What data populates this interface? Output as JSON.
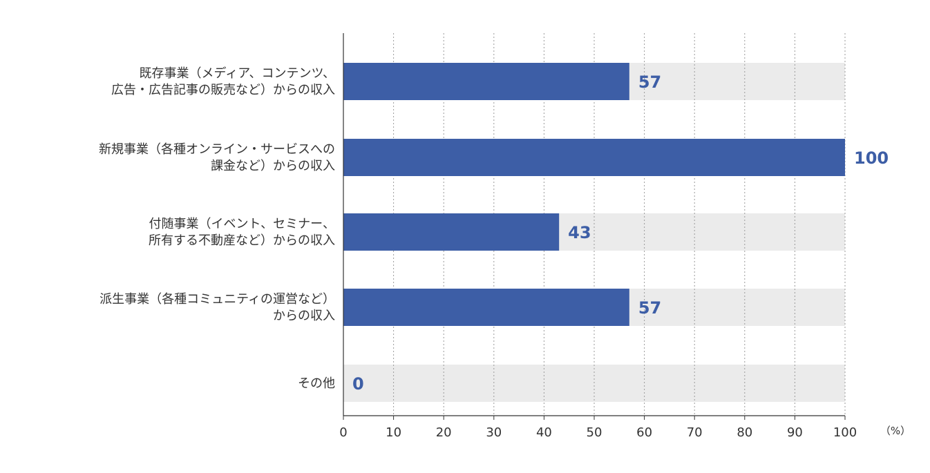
{
  "chart_data": {
    "type": "bar",
    "orientation": "horizontal",
    "categories": [
      [
        "既存事業（メディア、コンテンツ、",
        "広告・広告記事の販売など）からの収入"
      ],
      [
        "新規事業（各種オンライン・サービスへの",
        "課金など）からの収入"
      ],
      [
        "付随事業（イベント、セミナー、",
        "所有する不動産など）からの収入"
      ],
      [
        "派生事業（各種コミュニティの運営など）",
        "からの収入"
      ],
      [
        "その他"
      ]
    ],
    "values": [
      57,
      100,
      43,
      57,
      0
    ],
    "value_labels": [
      "57",
      "100",
      "43",
      "57",
      "0"
    ],
    "xlim": [
      0,
      100
    ],
    "x_ticks": [
      0,
      10,
      20,
      30,
      40,
      50,
      60,
      70,
      80,
      90,
      100
    ],
    "x_tick_labels": [
      "0",
      "10",
      "20",
      "30",
      "40",
      "50",
      "60",
      "70",
      "80",
      "90",
      "100"
    ],
    "unit_label": "（%）",
    "grid": "vertical-dotted",
    "colors": {
      "bar": "#3d5ea6",
      "track": "#ebebeb",
      "grid": "#9a9a9a",
      "axis": "#333333",
      "value_text": "#3d5ea6"
    }
  }
}
